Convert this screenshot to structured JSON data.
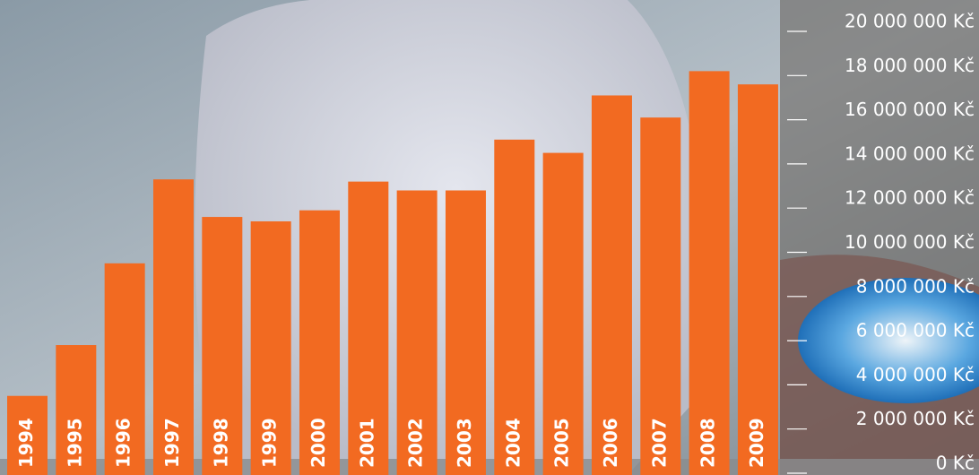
{
  "chart_data": {
    "type": "bar",
    "categories": [
      "1994",
      "1995",
      "1996",
      "1997",
      "1998",
      "1999",
      "2000",
      "2001",
      "2002",
      "2003",
      "2004",
      "2005",
      "2006",
      "2007",
      "2008",
      "2009"
    ],
    "values": [
      3500000,
      5800000,
      9500000,
      13300000,
      11600000,
      11400000,
      11900000,
      13200000,
      12800000,
      12800000,
      15100000,
      14500000,
      17100000,
      16100000,
      18200000,
      17600000
    ],
    "color": "#f26a21",
    "ylim": [
      0,
      20000000
    ],
    "yticks": [
      {
        "value": 0,
        "label": "0 Kč"
      },
      {
        "value": 2000000,
        "label": "2 000 000 Kč"
      },
      {
        "value": 4000000,
        "label": "4 000 000 Kč"
      },
      {
        "value": 6000000,
        "label": "6 000 000 Kč"
      },
      {
        "value": 8000000,
        "label": "8 000 000 Kč"
      },
      {
        "value": 10000000,
        "label": "10 000 000 Kč"
      },
      {
        "value": 12000000,
        "label": "12 000 000 Kč"
      },
      {
        "value": 14000000,
        "label": "14 000 000 Kč"
      },
      {
        "value": 16000000,
        "label": "16 000 000 Kč"
      },
      {
        "value": 18000000,
        "label": "18 000 000 Kč"
      },
      {
        "value": 20000000,
        "label": "20 000 000 Kč"
      }
    ]
  }
}
